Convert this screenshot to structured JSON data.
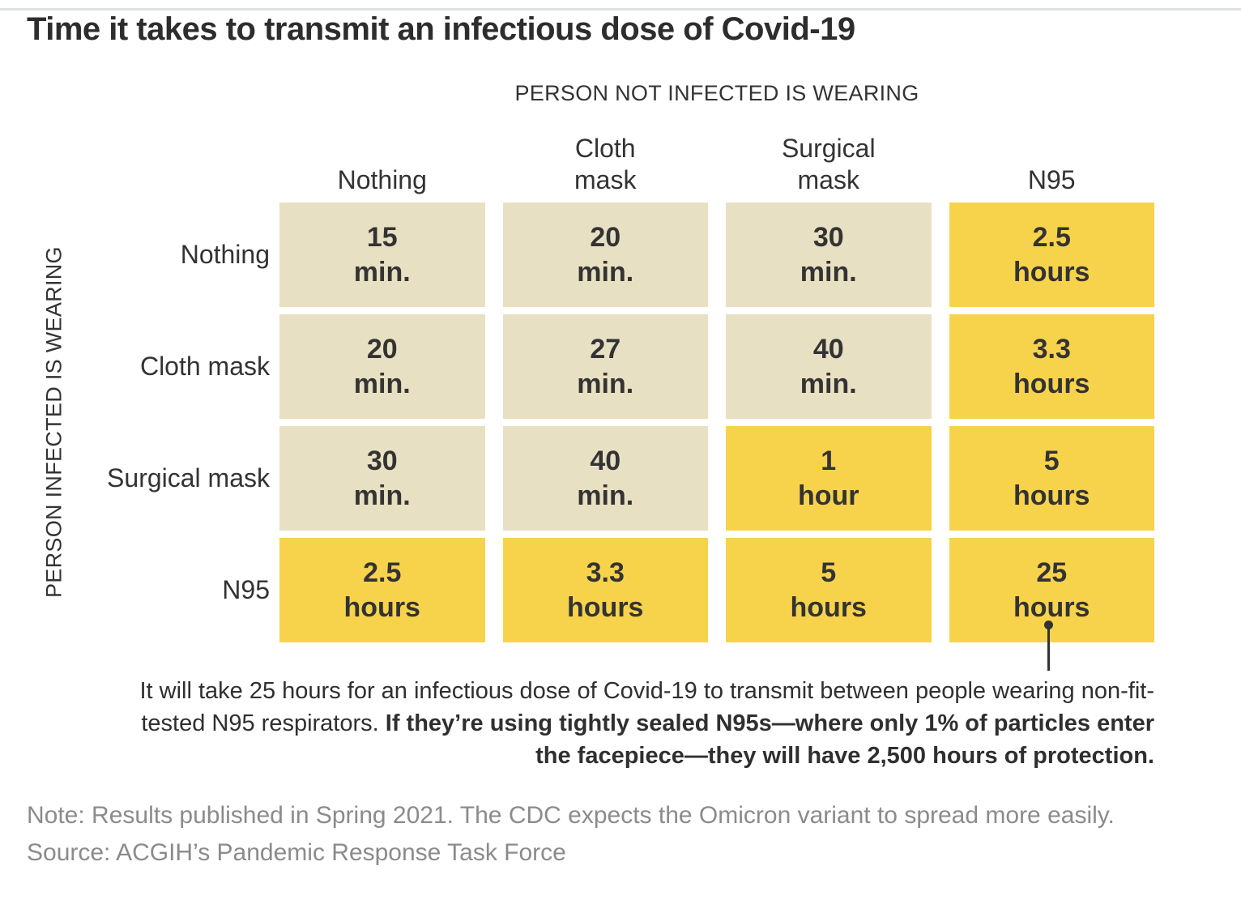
{
  "page": {
    "title": "Time it takes to transmit an infectious dose of Covid-19"
  },
  "chart_data": {
    "type": "heatmap",
    "title": "Time it takes to transmit an infectious dose of Covid-19",
    "x_axis_title": "PERSON NOT INFECTED IS WEARING",
    "y_axis_title": "PERSON INFECTED IS WEARING",
    "columns": [
      "Nothing",
      "Cloth mask",
      "Surgical mask",
      "N95"
    ],
    "rows": [
      "Nothing",
      "Cloth mask",
      "Surgical mask",
      "N95"
    ],
    "cells": [
      [
        {
          "value": "15",
          "unit": "min.",
          "highlight": false
        },
        {
          "value": "20",
          "unit": "min.",
          "highlight": false
        },
        {
          "value": "30",
          "unit": "min.",
          "highlight": false
        },
        {
          "value": "2.5",
          "unit": "hours",
          "highlight": true
        }
      ],
      [
        {
          "value": "20",
          "unit": "min.",
          "highlight": false
        },
        {
          "value": "27",
          "unit": "min.",
          "highlight": false
        },
        {
          "value": "40",
          "unit": "min.",
          "highlight": false
        },
        {
          "value": "3.3",
          "unit": "hours",
          "highlight": true
        }
      ],
      [
        {
          "value": "30",
          "unit": "min.",
          "highlight": false
        },
        {
          "value": "40",
          "unit": "min.",
          "highlight": false
        },
        {
          "value": "1",
          "unit": "hour",
          "highlight": true
        },
        {
          "value": "5",
          "unit": "hours",
          "highlight": true
        }
      ],
      [
        {
          "value": "2.5",
          "unit": "hours",
          "highlight": true
        },
        {
          "value": "3.3",
          "unit": "hours",
          "highlight": true
        },
        {
          "value": "5",
          "unit": "hours",
          "highlight": true
        },
        {
          "value": "25",
          "unit": "hours",
          "highlight": true
        }
      ]
    ],
    "colors": {
      "minutes_cell": "#e8e0c3",
      "hours_cell": "#f7d34c",
      "text": "#333333",
      "note_text": "#8b8b8b",
      "top_rule": "#dde2e2"
    },
    "legend_position": "none",
    "grid": false
  },
  "annotation": {
    "regular": "It will take 25 hours for an infectious dose of Covid-19 to transmit between people wearing non-fit-tested N95 respirators. ",
    "bold": "If they’re using tightly sealed N95s—where only 1% of particles enter the facepiece—they will have 2,500 hours of protection."
  },
  "footer": {
    "note": "Note: Results published in Spring 2021. The CDC expects the Omicron variant to spread more easily.",
    "source": "Source: ACGIH’s Pandemic Response Task Force"
  }
}
